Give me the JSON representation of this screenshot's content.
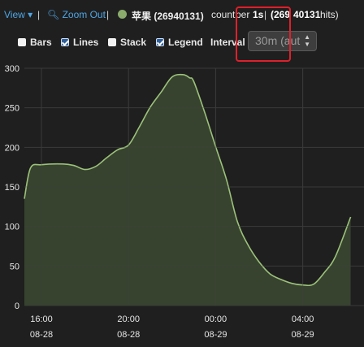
{
  "toolbar": {
    "view_label": "View ▾",
    "zoom_out_label": "Zoom Out",
    "series_dot_color": "#8aab6c",
    "series_text": "苹果 (26940131)",
    "count_text_pre": "count",
    "count_text_mid": "per",
    "count_text_bold": "1s",
    "count_text_sep": "|",
    "hits_bold": "(269",
    "hits_bold_b": "40131",
    "hits_text": "hits)"
  },
  "options": {
    "bars_label": "Bars",
    "bars_checked": false,
    "lines_label": "Lines",
    "lines_checked": true,
    "stack_label": "Stack",
    "stack_checked": false,
    "legend_label": "Legend",
    "legend_checked": true,
    "interval_label": "Interval",
    "interval_value": "30m (aut"
  },
  "chart_data": {
    "type": "area",
    "ylim": [
      0,
      300
    ],
    "yticks": [
      "300",
      "250",
      "200",
      "150",
      "100",
      "50",
      "0"
    ],
    "xticks": [
      {
        "time": "16:00",
        "date": "08-28"
      },
      {
        "time": "20:00",
        "date": "08-28"
      },
      {
        "time": "00:00",
        "date": "08-29"
      },
      {
        "time": "04:00",
        "date": "08-29"
      }
    ],
    "line_color": "#9cc27a",
    "fill_color": "#3c4a33",
    "x_hours_from_16": [
      -0.8,
      -0.5,
      0.0,
      1.0,
      1.5,
      2.0,
      2.5,
      3.0,
      3.5,
      4.0,
      4.5,
      5.0,
      5.5,
      6.0,
      6.5,
      6.8,
      7.0,
      7.5,
      8.0,
      8.5,
      9.0,
      9.5,
      10.0,
      10.5,
      11.0,
      11.5,
      12.0,
      12.5,
      13.0,
      13.5,
      14.2
    ],
    "values": [
      135,
      174,
      178,
      179,
      177,
      172,
      176,
      187,
      197,
      203,
      226,
      251,
      270,
      289,
      292,
      288,
      283,
      244,
      201,
      159,
      106,
      76,
      55,
      40,
      33,
      28,
      26,
      27,
      42,
      62,
      112
    ]
  }
}
